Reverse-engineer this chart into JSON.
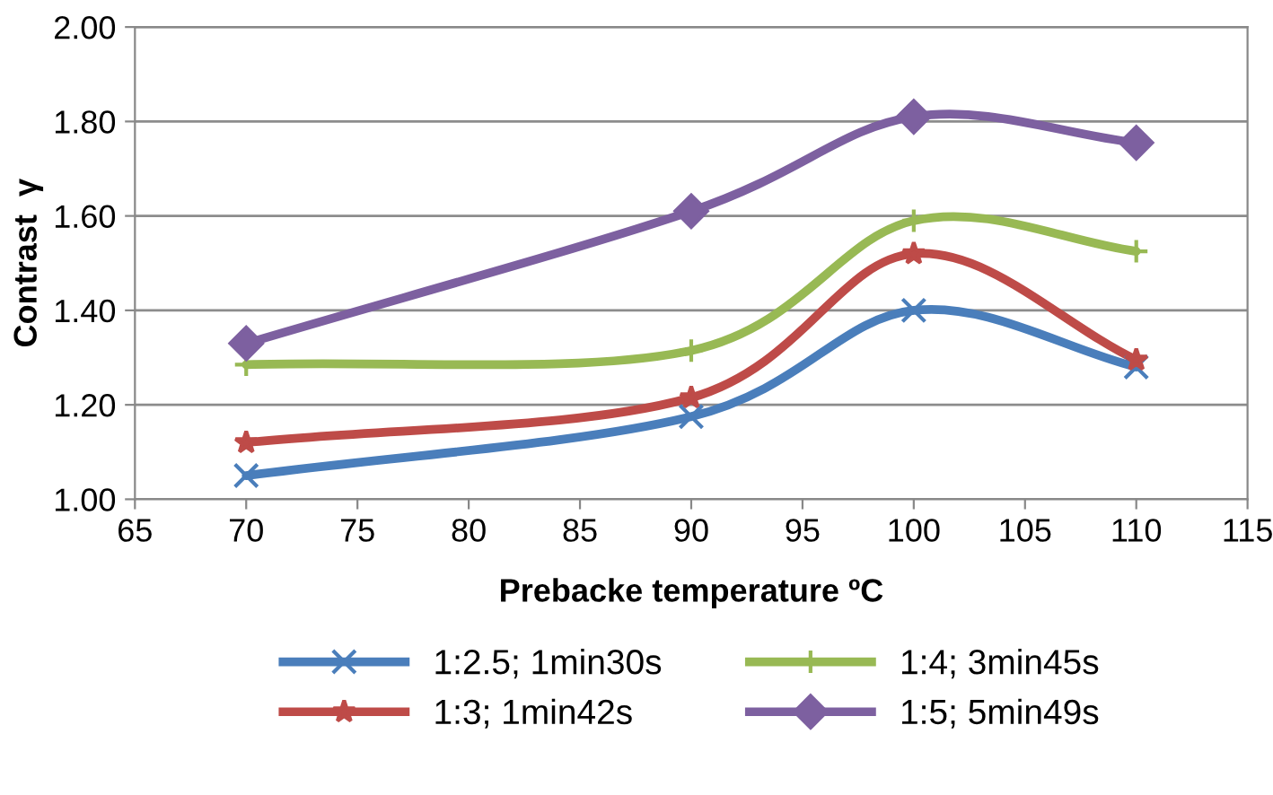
{
  "chart_data": {
    "type": "line",
    "xlabel": "Prebacke temperature ºC",
    "ylabel": "Contrast  γ",
    "x": [
      70,
      90,
      100,
      110
    ],
    "series": [
      {
        "name": "1:2.5; 1min30s",
        "color": "#4a7ebb",
        "marker": "cross",
        "values": [
          1.05,
          1.175,
          1.4,
          1.28
        ]
      },
      {
        "name": "1:3; 1min42s",
        "color": "#be4b48",
        "marker": "star",
        "values": [
          1.12,
          1.215,
          1.52,
          1.295
        ]
      },
      {
        "name": "1:4; 3min45s",
        "color": "#98b954",
        "marker": "plus",
        "values": [
          1.285,
          1.315,
          1.59,
          1.525
        ]
      },
      {
        "name": "1:5; 5min49s",
        "color": "#7d60a0",
        "marker": "diamond",
        "values": [
          1.33,
          1.61,
          1.81,
          1.755
        ]
      }
    ],
    "xlim": [
      65,
      115
    ],
    "xticks": [
      65,
      70,
      75,
      80,
      85,
      90,
      95,
      100,
      105,
      110,
      115
    ],
    "ylim": [
      1.0,
      2.0
    ],
    "yticks": [
      {
        "value": 1.0,
        "label": "1.00"
      },
      {
        "value": 1.2,
        "label": "1.20"
      },
      {
        "value": 1.4,
        "label": "1.40"
      },
      {
        "value": 1.6,
        "label": "1.60"
      },
      {
        "value": 1.8,
        "label": "1.80"
      },
      {
        "value": 2.0,
        "label": "2.00"
      }
    ],
    "grid": "y",
    "legend": "bottom",
    "line_style": "solid"
  }
}
